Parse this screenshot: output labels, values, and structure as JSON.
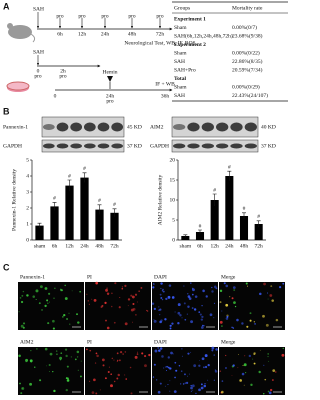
{
  "panel_labels": [
    "A",
    "B",
    "C"
  ],
  "timeline": {
    "mouse": {
      "start": "SAH",
      "pro_label": "pro",
      "times": [
        "6h",
        "12h",
        "24h",
        "48h",
        "72h"
      ],
      "end_note": "Neurological Test, WB, IF, ROS"
    },
    "mouse2": {
      "start": "SAH",
      "pro_label": "pro",
      "times": [
        "0",
        "2h"
      ]
    },
    "cells": {
      "event": "Hemin",
      "pro_label": "pro",
      "times": [
        "0",
        "24h",
        "36h"
      ],
      "end_note": "IF + WB"
    }
  },
  "table": {
    "header": [
      "Groups",
      "Mortality rate"
    ],
    "sections": [
      {
        "title": "Experiment 1",
        "rows": [
          [
            "Sham",
            "0.00%(0/7)"
          ],
          [
            "SAH(6h,12h,24h,48h,72h)",
            "23.68%(9/38)"
          ]
        ]
      },
      {
        "title": "Experiment 2",
        "rows": [
          [
            "Sham",
            "0.00%(0/22)"
          ],
          [
            "SAH",
            "22.86%(8/35)"
          ],
          [
            "SAH+Pro",
            "20.59%(7/34)"
          ]
        ]
      },
      {
        "title": "Total",
        "rows": [
          [
            "Sham",
            "0.00%(0/29)"
          ],
          [
            "SAH",
            "22.43%(24/107)"
          ]
        ]
      }
    ]
  },
  "blots": [
    {
      "target": "Pannexin-1",
      "target_kd": "45 KD",
      "control": "GAPDH",
      "control_kd": "37 KD"
    },
    {
      "target": "AIM2",
      "target_kd": "40 KD",
      "control": "GAPDH",
      "control_kd": "37 KD"
    }
  ],
  "chart_data": [
    {
      "type": "bar",
      "ylabel": "Pannexin-1 Relative density",
      "categories": [
        "sham",
        "6h",
        "12h",
        "24h",
        "48h",
        "72h"
      ],
      "values": [
        0.9,
        2.1,
        3.4,
        3.9,
        1.9,
        1.7
      ],
      "errors": [
        0.15,
        0.25,
        0.35,
        0.3,
        0.3,
        0.25
      ],
      "significance": [
        null,
        "#",
        "#",
        "#",
        "#",
        "#"
      ],
      "color": "#000000",
      "ylim": [
        0,
        5
      ],
      "yticks": [
        0,
        1,
        2,
        3,
        4,
        5
      ]
    },
    {
      "type": "bar",
      "ylabel": "AIM2 Relative density",
      "categories": [
        "sham",
        "6h",
        "12h",
        "24h",
        "48h",
        "72h"
      ],
      "values": [
        1,
        2,
        10,
        16,
        6,
        4
      ],
      "errors": [
        0.3,
        0.5,
        1.5,
        1.2,
        0.8,
        0.8
      ],
      "significance": [
        null,
        "#",
        "#",
        "#",
        "#",
        "#"
      ],
      "color": "#000000",
      "ylim": [
        0,
        20
      ],
      "yticks": [
        0,
        5,
        10,
        15,
        20
      ]
    }
  ],
  "panel_c": {
    "rows": [
      [
        "Pannexin-1",
        "PI",
        "DAPI",
        "Merge"
      ],
      [
        "AIM2",
        "PI",
        "DAPI",
        "Merge"
      ]
    ]
  }
}
